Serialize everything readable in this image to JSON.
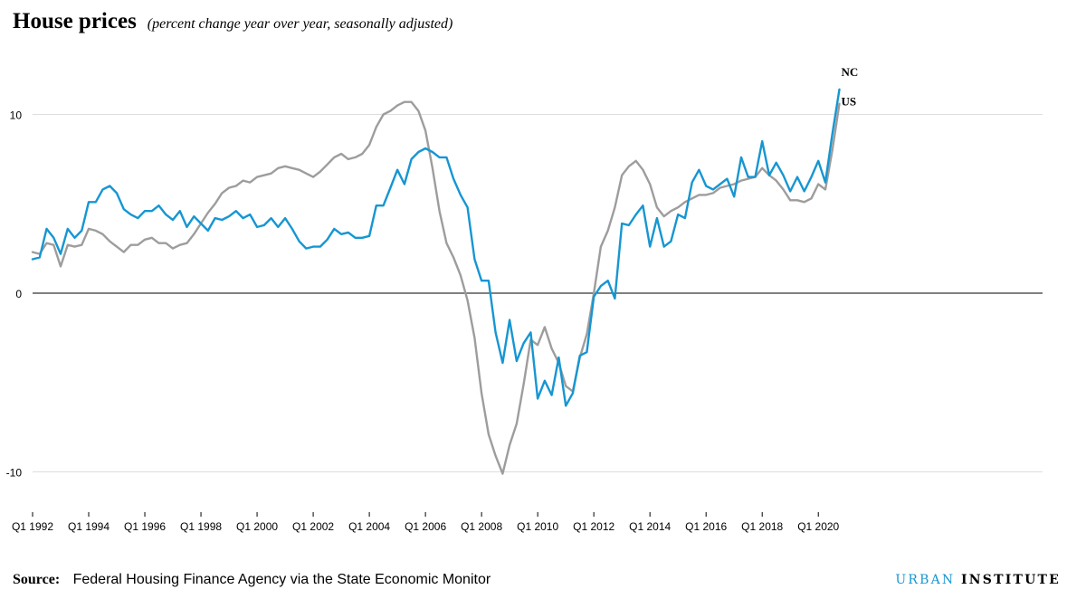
{
  "header": {
    "title": "House prices",
    "subtitle": "(percent change year over year, seasonally adjusted)"
  },
  "footer": {
    "source_label": "Source:",
    "source_text": "Federal Housing Finance Agency via the State Economic Monitor",
    "brand_part1": "URBAN",
    "brand_part2": "INSTITUTE"
  },
  "colors": {
    "nc": "#1696d2",
    "us": "#9d9d9d",
    "brand": "#1696d2"
  },
  "chart_data": {
    "type": "line",
    "title": "House prices",
    "subtitle": "(percent change year over year, seasonally adjusted)",
    "xlabel": "",
    "ylabel": "",
    "ylim": [
      -11.5,
      12
    ],
    "yticks": [
      -10,
      0,
      10
    ],
    "x_start": "Q1 1992",
    "x_end": "Q3 2020",
    "xtick_labels": [
      "Q1 1992",
      "Q1 1994",
      "Q1 1996",
      "Q1 1998",
      "Q1 2000",
      "Q1 2002",
      "Q1 2004",
      "Q1 2006",
      "Q1 2008",
      "Q1 2010",
      "Q1 2012",
      "Q1 2014",
      "Q1 2016",
      "Q1 2018",
      "Q1 2020"
    ],
    "grid": true,
    "legend": "direct labels at right end",
    "series": [
      {
        "name": "NC",
        "values": [
          1.9,
          2.0,
          3.6,
          3.1,
          2.2,
          3.6,
          3.1,
          3.5,
          5.1,
          5.1,
          5.8,
          6.0,
          5.6,
          4.7,
          4.4,
          4.2,
          4.6,
          4.6,
          4.9,
          4.4,
          4.1,
          4.6,
          3.7,
          4.3,
          3.9,
          3.5,
          4.2,
          4.1,
          4.3,
          4.6,
          4.2,
          4.4,
          3.7,
          3.8,
          4.2,
          3.7,
          4.2,
          3.6,
          2.9,
          2.5,
          2.6,
          2.6,
          3.0,
          3.6,
          3.3,
          3.4,
          3.1,
          3.1,
          3.2,
          4.9,
          4.9,
          5.9,
          6.9,
          6.1,
          7.5,
          7.9,
          8.1,
          7.9,
          7.6,
          7.6,
          6.4,
          5.5,
          4.8,
          1.9,
          0.7,
          0.7,
          -2.2,
          -3.9,
          -1.5,
          -3.8,
          -2.8,
          -2.2,
          -5.9,
          -4.9,
          -5.7,
          -3.6,
          -6.3,
          -5.6,
          -3.5,
          -3.3,
          -0.2,
          0.4,
          0.7,
          -0.3,
          3.9,
          3.8,
          4.4,
          4.9,
          2.6,
          4.2,
          2.6,
          2.9,
          4.4,
          4.2,
          6.2,
          6.9,
          6.0,
          5.8,
          6.1,
          6.4,
          5.4,
          7.6,
          6.5,
          6.5,
          8.5,
          6.6,
          7.3,
          6.6,
          5.7,
          6.5,
          5.7,
          6.5,
          7.4,
          6.2,
          8.9,
          11.4
        ]
      },
      {
        "name": "US",
        "values": [
          2.3,
          2.2,
          2.8,
          2.7,
          1.5,
          2.7,
          2.6,
          2.7,
          3.6,
          3.5,
          3.3,
          2.9,
          2.6,
          2.3,
          2.7,
          2.7,
          3.0,
          3.1,
          2.8,
          2.8,
          2.5,
          2.7,
          2.8,
          3.3,
          3.9,
          4.5,
          5.0,
          5.6,
          5.9,
          6.0,
          6.3,
          6.2,
          6.5,
          6.6,
          6.7,
          7.0,
          7.1,
          7.0,
          6.9,
          6.7,
          6.5,
          6.8,
          7.2,
          7.6,
          7.8,
          7.5,
          7.6,
          7.8,
          8.3,
          9.3,
          10.0,
          10.2,
          10.5,
          10.7,
          10.7,
          10.2,
          9.1,
          7.0,
          4.6,
          2.8,
          2.0,
          1.0,
          -0.4,
          -2.5,
          -5.6,
          -7.9,
          -9.1,
          -10.1,
          -8.5,
          -7.3,
          -5.1,
          -2.6,
          -2.9,
          -1.9,
          -3.1,
          -3.9,
          -5.2,
          -5.5,
          -3.6,
          -2.3,
          0.0,
          2.6,
          3.5,
          4.8,
          6.6,
          7.1,
          7.4,
          6.9,
          6.1,
          4.8,
          4.3,
          4.6,
          4.8,
          5.1,
          5.3,
          5.5,
          5.5,
          5.6,
          5.9,
          6.0,
          6.1,
          6.3,
          6.4,
          6.5,
          7.0,
          6.6,
          6.3,
          5.8,
          5.2,
          5.2,
          5.1,
          5.3,
          6.1,
          5.8,
          8.0,
          10.6
        ]
      }
    ]
  }
}
